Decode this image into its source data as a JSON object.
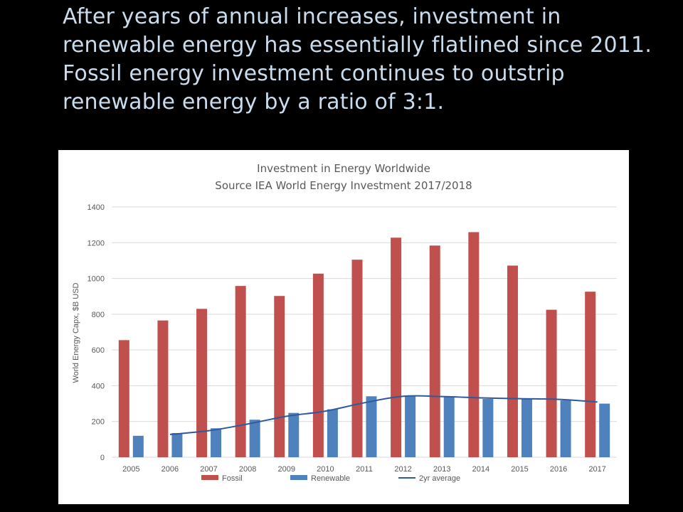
{
  "headline": {
    "lines": [
      "After years of annual increases, investment in",
      "renewable energy has essentially flatlined since 2011.",
      "Fossil energy investment continues to outstrip",
      "renewable energy by a ratio of 3:1."
    ]
  },
  "colors": {
    "background": "#000000",
    "headline": "#c9dcee",
    "fossil": "#c0504d",
    "renewable": "#4f81bd",
    "average_line": "#2e5a9c",
    "gridline": "#d9d9d9",
    "axis_text": "#595959"
  },
  "chart_data": {
    "type": "bar",
    "title": "Investment in Energy Worldwide",
    "subtitle": "Source IEA World Energy Investment 2017/2018",
    "xlabel": "",
    "ylabel": "World Energy Capx, $B USD",
    "ylim": [
      0,
      1400
    ],
    "yticks": [
      0,
      200,
      400,
      600,
      800,
      1000,
      1200,
      1400
    ],
    "grid": true,
    "legend_position": "bottom",
    "categories": [
      "2005",
      "2006",
      "2007",
      "2008",
      "2009",
      "2010",
      "2011",
      "2012",
      "2013",
      "2014",
      "2015",
      "2016",
      "2017"
    ],
    "series": [
      {
        "name": "Fossil",
        "kind": "bar",
        "values": [
          655,
          765,
          830,
          958,
          902,
          1027,
          1105,
          1228,
          1184,
          1259,
          1072,
          825,
          926
        ]
      },
      {
        "name": "Renewable",
        "kind": "bar",
        "values": [
          120,
          135,
          162,
          210,
          248,
          268,
          341,
          341,
          338,
          326,
          329,
          318,
          300
        ]
      },
      {
        "name": "2yr average",
        "kind": "line",
        "values": [
          null,
          127.5,
          148.5,
          186,
          229,
          258,
          304.5,
          341,
          339.5,
          332,
          327.5,
          323.5,
          309
        ]
      }
    ]
  }
}
